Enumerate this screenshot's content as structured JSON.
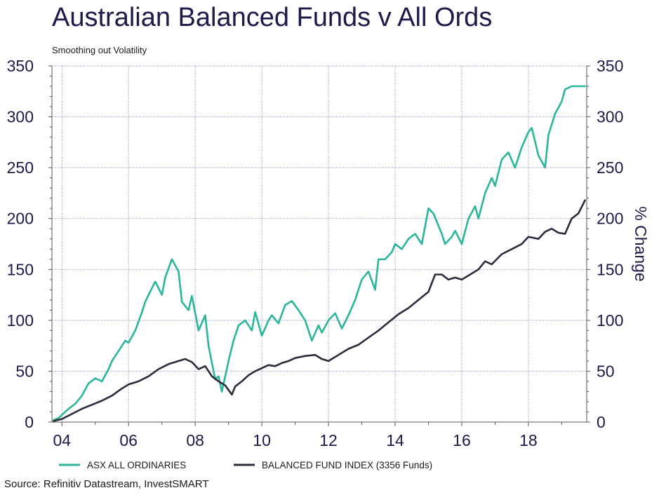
{
  "header": {
    "title": "Australian Balanced Funds v All Ords",
    "subtitle": "Smoothing out Volatility"
  },
  "footer": {
    "source": "Source: Refinitiv Datastream, InvestSMART"
  },
  "colors": {
    "axis_text": "#1a1a4b",
    "grid": "#8a8ab0"
  },
  "chart_data": {
    "type": "line",
    "title": "Australian Balanced Funds v All Ords",
    "subtitle": "Smoothing out Volatility",
    "xlabel": "",
    "ylabel_right": "% Change",
    "xlim": [
      2003.7,
      2019.75
    ],
    "ylim": [
      0,
      350
    ],
    "x_ticks": [
      2004,
      2006,
      2008,
      2010,
      2012,
      2014,
      2016,
      2018
    ],
    "x_tick_labels": [
      "04",
      "06",
      "08",
      "10",
      "12",
      "14",
      "16",
      "18"
    ],
    "y_ticks": [
      0,
      50,
      100,
      150,
      200,
      250,
      300,
      350
    ],
    "y_tick_labels": [
      "0",
      "50",
      "100",
      "150",
      "200",
      "250",
      "300",
      "350"
    ],
    "grid": true,
    "legend_position": "bottom",
    "series": [
      {
        "name": "ASX ALL ORDINARIES",
        "color": "#2bb59a",
        "x": [
          2003.75,
          2003.9,
          2004.0,
          2004.2,
          2004.4,
          2004.6,
          2004.8,
          2005.0,
          2005.2,
          2005.4,
          2005.5,
          2005.7,
          2005.9,
          2006.0,
          2006.2,
          2006.4,
          2006.5,
          2006.6,
          2006.8,
          2007.0,
          2007.1,
          2007.3,
          2007.5,
          2007.6,
          2007.8,
          2007.9,
          2008.1,
          2008.3,
          2008.4,
          2008.6,
          2008.7,
          2008.8,
          2008.9,
          2009.0,
          2009.15,
          2009.3,
          2009.5,
          2009.7,
          2009.8,
          2010.0,
          2010.2,
          2010.3,
          2010.5,
          2010.7,
          2010.9,
          2011.1,
          2011.3,
          2011.5,
          2011.7,
          2011.8,
          2012.0,
          2012.2,
          2012.4,
          2012.6,
          2012.8,
          2013.0,
          2013.2,
          2013.4,
          2013.5,
          2013.7,
          2013.9,
          2014.0,
          2014.2,
          2014.4,
          2014.6,
          2014.8,
          2015.0,
          2015.15,
          2015.4,
          2015.5,
          2015.7,
          2015.8,
          2016.0,
          2016.2,
          2016.4,
          2016.5,
          2016.7,
          2016.9,
          2017.0,
          2017.2,
          2017.4,
          2017.6,
          2017.8,
          2018.0,
          2018.1,
          2018.3,
          2018.5,
          2018.6,
          2018.8,
          2019.0,
          2019.1,
          2019.3,
          2019.5,
          2019.7
        ],
        "values": [
          2,
          4,
          7,
          13,
          18,
          26,
          38,
          43,
          40,
          52,
          60,
          70,
          80,
          78,
          90,
          108,
          118,
          125,
          138,
          125,
          142,
          160,
          148,
          118,
          110,
          124,
          90,
          105,
          75,
          42,
          45,
          30,
          45,
          60,
          80,
          95,
          100,
          90,
          108,
          85,
          100,
          105,
          97,
          115,
          119,
          110,
          100,
          80,
          95,
          88,
          100,
          107,
          92,
          105,
          120,
          140,
          148,
          130,
          160,
          160,
          167,
          175,
          170,
          180,
          185,
          175,
          210,
          205,
          185,
          175,
          182,
          188,
          175,
          200,
          212,
          200,
          225,
          240,
          232,
          258,
          265,
          250,
          270,
          285,
          289,
          262,
          250,
          282,
          303,
          315,
          327,
          330,
          330,
          330
        ],
        "values_note": ""
      },
      {
        "name": "BALANCED FUND INDEX (3356 Funds)",
        "color": "#2b2b3d",
        "x": [
          2003.75,
          2004.0,
          2004.3,
          2004.6,
          2004.9,
          2005.2,
          2005.5,
          2005.8,
          2006.0,
          2006.3,
          2006.6,
          2006.9,
          2007.2,
          2007.5,
          2007.7,
          2007.9,
          2008.1,
          2008.3,
          2008.5,
          2008.7,
          2008.9,
          2009.1,
          2009.2,
          2009.4,
          2009.6,
          2009.8,
          2010.0,
          2010.2,
          2010.4,
          2010.6,
          2010.8,
          2011.0,
          2011.3,
          2011.6,
          2011.8,
          2012.0,
          2012.3,
          2012.6,
          2012.9,
          2013.2,
          2013.5,
          2013.8,
          2014.1,
          2014.4,
          2014.7,
          2015.0,
          2015.2,
          2015.4,
          2015.6,
          2015.8,
          2016.0,
          2016.2,
          2016.5,
          2016.7,
          2016.9,
          2017.2,
          2017.5,
          2017.8,
          2018.0,
          2018.3,
          2018.5,
          2018.7,
          2018.9,
          2019.1,
          2019.3,
          2019.5,
          2019.7
        ],
        "values": [
          1,
          3,
          8,
          13,
          17,
          21,
          26,
          33,
          37,
          40,
          45,
          52,
          57,
          60,
          62,
          59,
          52,
          55,
          45,
          40,
          36,
          27,
          35,
          40,
          46,
          50,
          53,
          56,
          55,
          58,
          60,
          63,
          65,
          66,
          62,
          60,
          66,
          72,
          76,
          83,
          90,
          98,
          106,
          112,
          120,
          128,
          145,
          145,
          140,
          142,
          140,
          144,
          150,
          158,
          155,
          165,
          170,
          175,
          182,
          180,
          187,
          190,
          186,
          185,
          200,
          205,
          218
        ]
      }
    ]
  }
}
